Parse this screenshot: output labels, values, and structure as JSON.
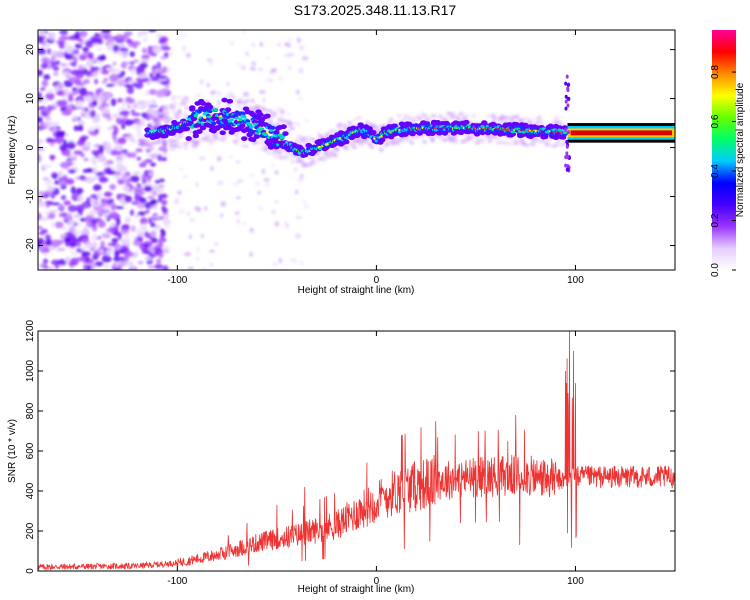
{
  "title": "S173.2025.348.11.13.R17",
  "chart_data": [
    {
      "type": "heatmap",
      "xlabel": "Height of straight line (km)",
      "ylabel": "Frequency (Hz)",
      "xlim": [
        -170,
        150
      ],
      "ylim": [
        -25,
        24
      ],
      "x_ticks": [
        -100,
        0,
        100
      ],
      "y_ticks": [
        -20,
        -10,
        0,
        10,
        20
      ],
      "colorbar": {
        "label": "Normalized spectral amplitude",
        "range": [
          0,
          0.97
        ],
        "ticks": [
          0.0,
          0.2,
          0.4,
          0.6,
          0.8
        ],
        "tick_labels": [
          "0.0",
          "0.2",
          "0.4",
          "0.6",
          "0.8"
        ],
        "colors": [
          "#ffffff",
          "#e6ccff",
          "#9933ff",
          "#4400ff",
          "#0000ff",
          "#00ccff",
          "#00ff66",
          "#66ff00",
          "#ffff00",
          "#ff8800",
          "#ff0000",
          "#ff0099"
        ]
      },
      "ridge": {
        "x": [
          -115,
          -105,
          -95,
          -88,
          -80,
          -72,
          -64,
          -58,
          -52,
          -46,
          -40,
          -36,
          -32,
          -26,
          -20,
          -14,
          -8,
          -4,
          0,
          5,
          10,
          20,
          30,
          45,
          60,
          75,
          90,
          96,
          110,
          130,
          150
        ],
        "y": [
          3,
          3.5,
          5,
          6,
          6.5,
          6,
          5,
          4,
          2.5,
          1,
          -0.5,
          -1,
          -0.5,
          0.5,
          1.5,
          2.5,
          3.5,
          3,
          1.5,
          3,
          3.5,
          4,
          4,
          4,
          3.8,
          3.5,
          3.2,
          3,
          3,
          3,
          3
        ]
      }
    },
    {
      "type": "line",
      "xlabel": "Height of straight line (km)",
      "ylabel": "SNR (10 * v/v)",
      "xlim": [
        -170,
        150
      ],
      "ylim": [
        0,
        1200
      ],
      "x_ticks": [
        -100,
        0,
        100
      ],
      "y_ticks": [
        0,
        200,
        400,
        600,
        800,
        1000,
        1200
      ],
      "series_color": "#ee3333",
      "trend": {
        "x": [
          -170,
          -120,
          -100,
          -80,
          -60,
          -40,
          -20,
          -5,
          10,
          30,
          50,
          70,
          90,
          95,
          100,
          110,
          130,
          150
        ],
        "y": [
          20,
          25,
          40,
          80,
          140,
          180,
          230,
          320,
          400,
          450,
          470,
          480,
          460,
          450,
          470,
          470,
          470,
          470
        ]
      },
      "spikes": [
        {
          "x": 97,
          "y": 1200
        },
        {
          "x": 98,
          "y": 70
        },
        {
          "x": 99,
          "y": 1100
        },
        {
          "x": 95,
          "y": 1000
        },
        {
          "x": 100,
          "y": 100
        },
        {
          "x": 70,
          "y": 780
        },
        {
          "x": 72,
          "y": 130
        },
        {
          "x": 66,
          "y": 650
        },
        {
          "x": -36,
          "y": 420
        },
        {
          "x": -50,
          "y": 330
        },
        {
          "x": -65,
          "y": 240
        },
        {
          "x": 14,
          "y": 110
        }
      ]
    }
  ]
}
